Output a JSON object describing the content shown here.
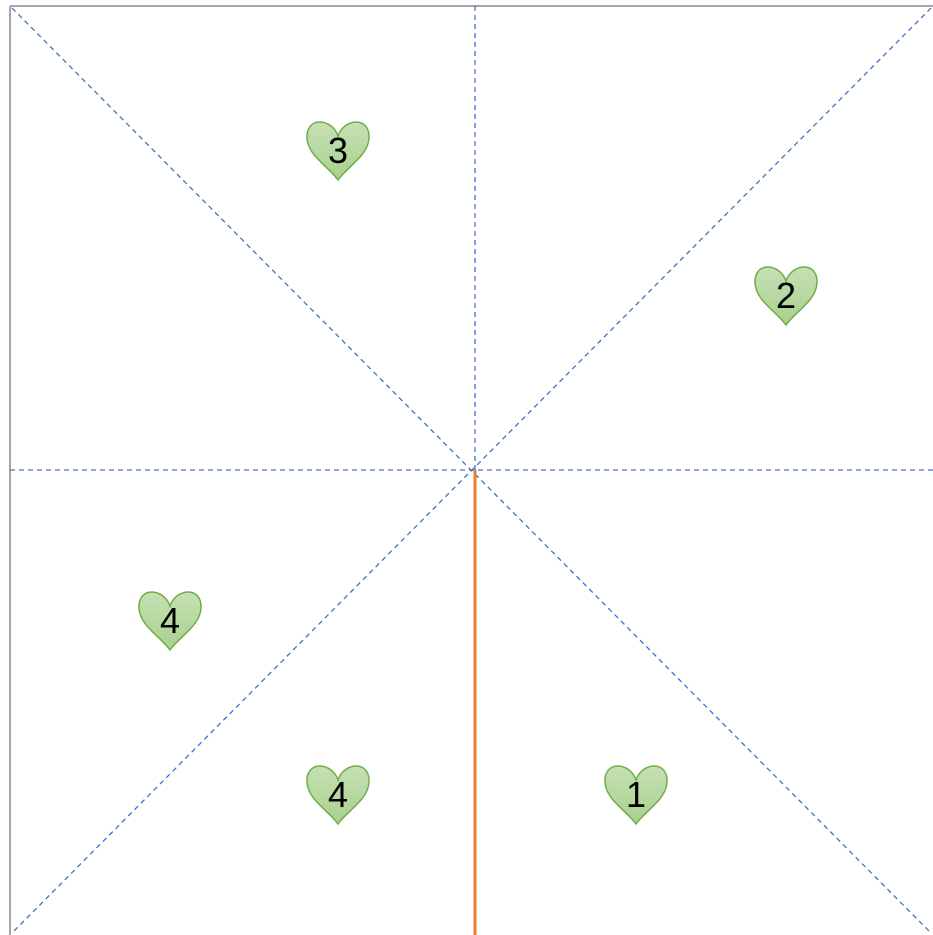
{
  "colors": {
    "border": "#a6a6a6",
    "dashed_lines": "#4472c4",
    "orange_line": "#ed7d31",
    "heart_fill_top": "#c6e0b4",
    "heart_fill_bottom": "#a9d18e",
    "heart_stroke": "#70ad47",
    "label": "#000000"
  },
  "hearts": [
    {
      "label": "3",
      "sector": "top-left-upper"
    },
    {
      "label": "2",
      "sector": "top-right-lower"
    },
    {
      "label": "4",
      "sector": "bottom-left-upper"
    },
    {
      "label": "4",
      "sector": "bottom-left-lower"
    },
    {
      "label": "1",
      "sector": "bottom-right-lower"
    }
  ]
}
